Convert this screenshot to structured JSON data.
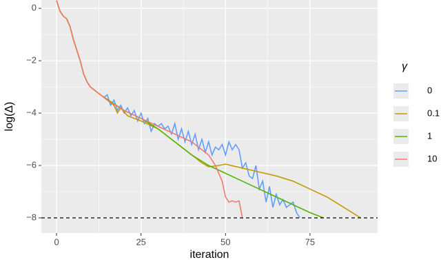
{
  "chart_data": {
    "type": "line",
    "x_label": "iteration",
    "y_label": "log(Δ)",
    "legend_title": "γ",
    "legend": "right",
    "grid": true,
    "xlim": [
      -4.5,
      95
    ],
    "ylim": [
      -8.58,
      0.32
    ],
    "xticks": [
      0,
      25,
      50,
      75
    ],
    "yticks": [
      {
        "value": -8,
        "label": "−8"
      },
      {
        "value": -6,
        "label": "−6"
      },
      {
        "value": -4,
        "label": "−4"
      },
      {
        "value": -2,
        "label": "−2"
      },
      0
    ],
    "hline": -8,
    "series": [
      {
        "name": "0",
        "color": "#619cff",
        "x": [
          0,
          1,
          2,
          3,
          4,
          5,
          6,
          7,
          8,
          9,
          10,
          11,
          12,
          13,
          14,
          15,
          16,
          17,
          18,
          19,
          20,
          21,
          22,
          23,
          24,
          25,
          26,
          27,
          28,
          29,
          30,
          31,
          32,
          33,
          34,
          35,
          36,
          37,
          38,
          39,
          40,
          41,
          42,
          43,
          44,
          45,
          46,
          47,
          48,
          49,
          50,
          51,
          52,
          53,
          54,
          55,
          56,
          57,
          58,
          59,
          60,
          61,
          62,
          63,
          64,
          65,
          66,
          67,
          68,
          69,
          70,
          71,
          72
        ],
        "values": [
          0.3,
          -0.1,
          -0.3,
          -0.4,
          -0.7,
          -1.2,
          -1.6,
          -2.0,
          -2.5,
          -2.8,
          -3.0,
          -3.1,
          -3.2,
          -3.3,
          -3.4,
          -3.3,
          -3.7,
          -3.5,
          -3.9,
          -3.7,
          -4.0,
          -3.8,
          -4.1,
          -3.9,
          -4.3,
          -4.0,
          -4.4,
          -4.2,
          -4.7,
          -4.4,
          -4.5,
          -4.4,
          -4.6,
          -4.5,
          -4.8,
          -4.4,
          -5.0,
          -4.6,
          -5.1,
          -4.7,
          -5.2,
          -4.8,
          -5.4,
          -5.0,
          -5.5,
          -5.1,
          -5.6,
          -5.3,
          -5.4,
          -5.2,
          -5.6,
          -5.1,
          -5.4,
          -5.2,
          -5.4,
          -6.1,
          -5.9,
          -6.4,
          -6.5,
          -6.0,
          -6.9,
          -6.6,
          -7.4,
          -6.8,
          -7.6,
          -7.1,
          -7.5,
          -7.3,
          -7.6,
          -7.5,
          -7.4,
          -7.8,
          -8.0
        ]
      },
      {
        "name": "0.1",
        "color": "#c49a00",
        "x": [
          0,
          1,
          2,
          3,
          4,
          5,
          6,
          7,
          8,
          9,
          10,
          11,
          12,
          13,
          15,
          17,
          18,
          19,
          21,
          23,
          25,
          30,
          35,
          40,
          43,
          45,
          48,
          50,
          55,
          60,
          65,
          70,
          75,
          80,
          85,
          90
        ],
        "values": [
          0.3,
          -0.1,
          -0.3,
          -0.4,
          -0.7,
          -1.2,
          -1.6,
          -2.0,
          -2.5,
          -2.8,
          -3.0,
          -3.1,
          -3.2,
          -3.3,
          -3.5,
          -3.7,
          -4.0,
          -3.8,
          -4.1,
          -4.2,
          -4.3,
          -4.6,
          -5.1,
          -5.6,
          -5.9,
          -6.05,
          -6.0,
          -5.95,
          -6.1,
          -6.25,
          -6.4,
          -6.6,
          -6.9,
          -7.2,
          -7.6,
          -8.0
        ]
      },
      {
        "name": "1",
        "color": "#53b400",
        "x": [
          0,
          1,
          2,
          3,
          4,
          5,
          6,
          7,
          8,
          9,
          10,
          11,
          12,
          13,
          20,
          25,
          30,
          35,
          40,
          45,
          50,
          55,
          60,
          65,
          70,
          75,
          79
        ],
        "values": [
          0.3,
          -0.1,
          -0.3,
          -0.4,
          -0.7,
          -1.2,
          -1.6,
          -2.0,
          -2.5,
          -2.8,
          -3.0,
          -3.1,
          -3.2,
          -3.3,
          -3.9,
          -4.2,
          -4.6,
          -5.1,
          -5.6,
          -6.0,
          -6.3,
          -6.6,
          -6.9,
          -7.2,
          -7.5,
          -7.8,
          -8.0
        ]
      },
      {
        "name": "10",
        "color": "#f8766d",
        "x": [
          0,
          1,
          2,
          3,
          4,
          5,
          6,
          7,
          8,
          9,
          10,
          11,
          12,
          13,
          15,
          20,
          25,
          30,
          35,
          40,
          42,
          45,
          47,
          49,
          50,
          51,
          52,
          53,
          54,
          55
        ],
        "values": [
          0.3,
          -0.1,
          -0.3,
          -0.4,
          -0.7,
          -1.2,
          -1.6,
          -2.0,
          -2.5,
          -2.8,
          -3.0,
          -3.1,
          -3.2,
          -3.3,
          -3.5,
          -3.9,
          -4.2,
          -4.5,
          -4.8,
          -5.1,
          -5.3,
          -5.6,
          -6.0,
          -6.6,
          -7.2,
          -7.4,
          -7.35,
          -7.4,
          -7.35,
          -8.0
        ]
      }
    ]
  }
}
